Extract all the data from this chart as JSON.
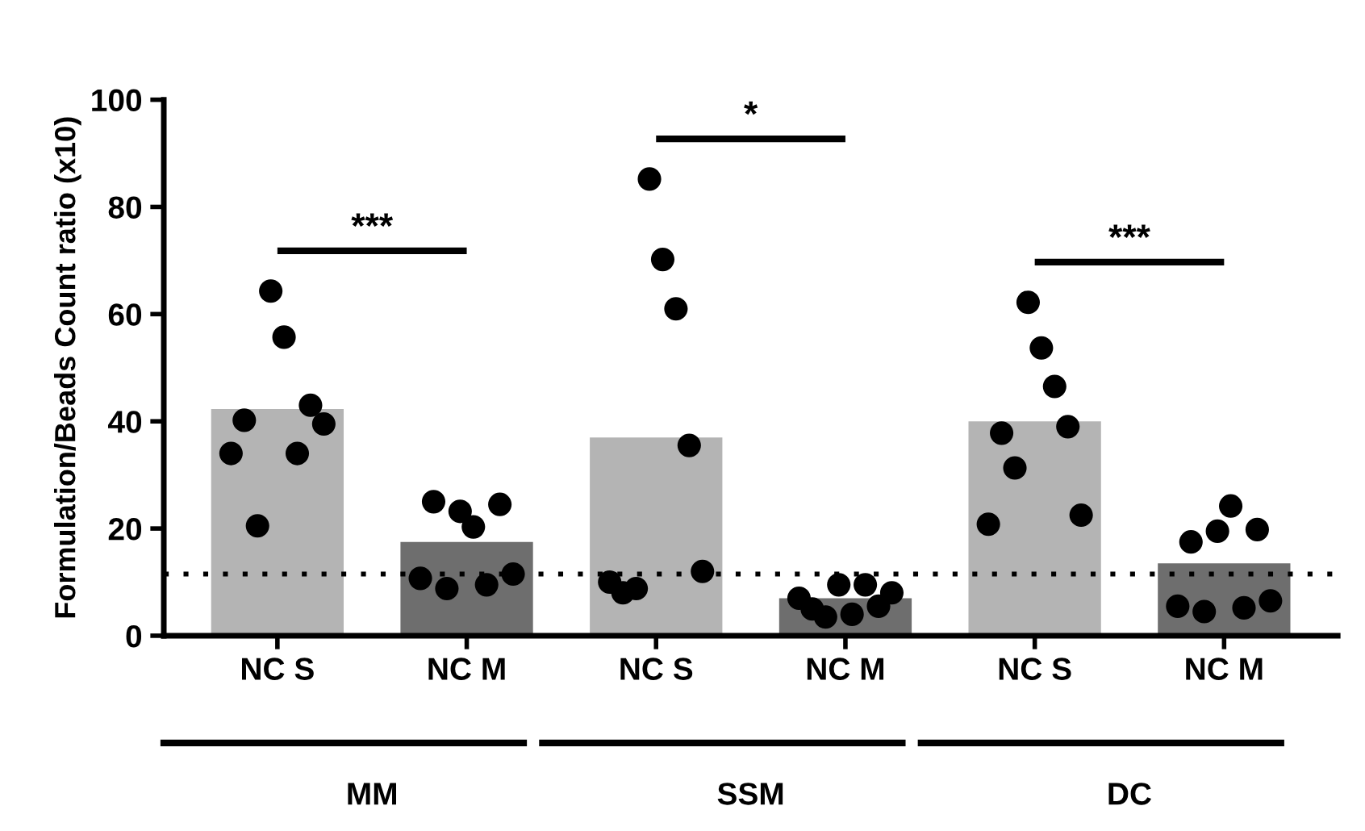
{
  "chart_data": {
    "type": "bar",
    "ylabel": "Formulation/Beads Count ratio (x10)",
    "categories": [
      "NC S",
      "NC M",
      "NC S",
      "NC M",
      "NC S",
      "NC M"
    ],
    "ylim": [
      0,
      100
    ],
    "yticks": [
      0,
      20,
      40,
      60,
      80,
      100
    ],
    "grid": false,
    "series": [
      {
        "colors": [
          "#b4b4b4",
          "#6e6e6e",
          "#b4b4b4",
          "#6e6e6e",
          "#b4b4b4",
          "#6e6e6e"
        ],
        "values": [
          42.3,
          17.5,
          37,
          7,
          40,
          13.5
        ]
      },
      {
        "type": "scatter",
        "color": "#000000",
        "values": [
          34,
          10.7,
          10,
          7,
          20.8,
          5.5
        ]
      },
      {
        "type": "scatter",
        "color": "#000000",
        "values": [
          40.2,
          25,
          8,
          5,
          37.8,
          17.5
        ]
      },
      {
        "type": "scatter",
        "color": "#000000",
        "values": [
          20.5,
          8.8,
          8.8,
          3.5,
          31.3,
          4.5
        ]
      },
      {
        "type": "scatter",
        "color": "#000000",
        "values": [
          64.3,
          23.2,
          85.2,
          9.5,
          62.2,
          19.5
        ]
      },
      {
        "type": "scatter",
        "color": "#000000",
        "values": [
          55.7,
          20.3,
          70.2,
          4,
          53.7,
          24.2
        ]
      },
      {
        "type": "scatter",
        "color": "#000000",
        "values": [
          34,
          9.5,
          61,
          9.5,
          46.5,
          5.2
        ]
      },
      {
        "type": "scatter",
        "color": "#000000",
        "values": [
          43,
          24.5,
          35.5,
          5.5,
          39,
          19.8
        ]
      },
      {
        "type": "scatter",
        "color": "#000000",
        "values": [
          39.5,
          11.5,
          12,
          8,
          22.5,
          6.5
        ]
      }
    ],
    "marker": "circle",
    "ref_lines": [
      {
        "axis": "y",
        "value": 11.5,
        "color": "#000000",
        "line_style": "dotted"
      }
    ],
    "annotations": [
      "***",
      "*",
      "***",
      "MM",
      "SSM",
      "DC"
    ]
  }
}
